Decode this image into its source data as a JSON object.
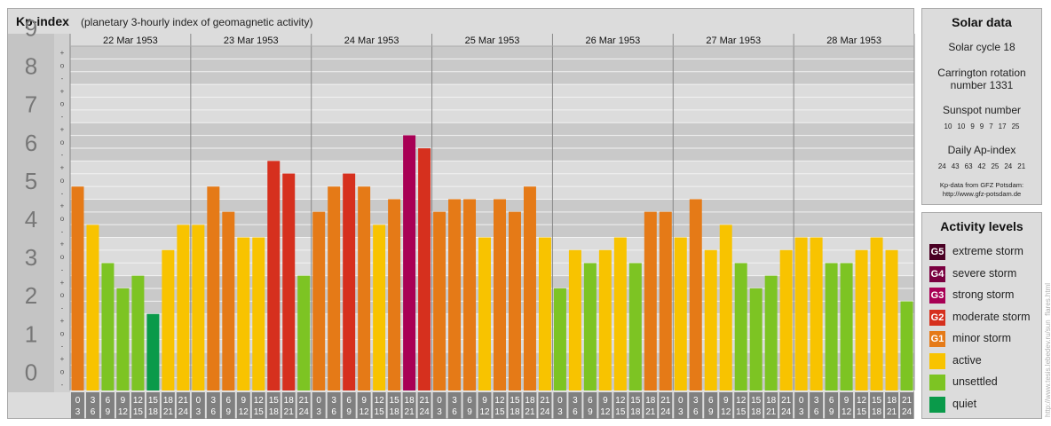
{
  "header": {
    "title": "Kp-index",
    "subtitle": "(planetary 3-hourly index of geomagnetic activity)"
  },
  "chart_data": {
    "type": "bar",
    "y_axis": {
      "range": [
        0,
        9
      ],
      "tick_labels": [
        "0",
        "1",
        "2",
        "3",
        "4",
        "5",
        "6",
        "7",
        "8",
        "9"
      ],
      "minor_marks": [
        "-",
        "o",
        "+"
      ]
    },
    "days": [
      "22 Mar 1953",
      "23 Mar 1953",
      "24 Mar 1953",
      "25 Mar 1953",
      "26 Mar 1953",
      "27 Mar 1953",
      "28 Mar 1953"
    ],
    "interval_labels": [
      [
        "0",
        "3"
      ],
      [
        "3",
        "6"
      ],
      [
        "6",
        "9"
      ],
      [
        "9",
        "12"
      ],
      [
        "12",
        "15"
      ],
      [
        "15",
        "18"
      ],
      [
        "18",
        "21"
      ],
      [
        "21",
        "24"
      ]
    ],
    "kp_values": [
      5.33,
      4.33,
      3.33,
      2.67,
      3,
      2,
      3.67,
      4.33,
      4.33,
      5.33,
      4.67,
      4,
      4,
      6,
      5.67,
      3,
      4.67,
      5.33,
      5.67,
      5.33,
      4.33,
      5,
      6.67,
      6.33,
      4.67,
      5,
      5,
      4,
      5,
      4.67,
      5.33,
      4,
      2.67,
      3.67,
      3.33,
      3.67,
      4,
      3.33,
      4.67,
      4.67,
      4,
      5,
      3.67,
      4.33,
      3.33,
      2.67,
      3,
      3.67,
      4,
      4,
      3.33,
      3.33,
      3.67,
      4,
      3.67,
      2.33
    ],
    "color_scale": [
      {
        "level": "quiet",
        "max": 2,
        "color": "#0a9a4a"
      },
      {
        "level": "unsettled",
        "max": 3.34,
        "color": "#7dc423"
      },
      {
        "level": "active",
        "max": 4.34,
        "color": "#f8c300"
      },
      {
        "level": "minor storm",
        "max": 5.34,
        "color": "#e57a17"
      },
      {
        "level": "moderate storm",
        "max": 6.34,
        "color": "#d6301e"
      },
      {
        "level": "strong storm",
        "max": 7.34,
        "color": "#a80055"
      },
      {
        "level": "severe storm",
        "max": 8.34,
        "color": "#7a0040"
      },
      {
        "level": "extreme storm",
        "max": 9,
        "color": "#4a0024"
      }
    ],
    "grid": true
  },
  "solar": {
    "title": "Solar data",
    "cycle": "Solar cycle 18",
    "carrington_line1": "Carrington rotation",
    "carrington_line2": "number 1331",
    "sunspot_label": "Sunspot number",
    "sunspot_values": [
      "10",
      "10",
      "9",
      "9",
      "7",
      "17",
      "25"
    ],
    "ap_label": "Daily Ap-index",
    "ap_values": [
      "24",
      "43",
      "63",
      "42",
      "25",
      "24",
      "21"
    ],
    "source_line1": "Kp-data from GFZ Potsdam:",
    "source_line2": "http://www.gfz-potsdam.de"
  },
  "activity": {
    "title": "Activity levels",
    "items": [
      {
        "code": "G5",
        "label": "extreme storm",
        "color": "#4a0024"
      },
      {
        "code": "G4",
        "label": "severe storm",
        "color": "#7a0040"
      },
      {
        "code": "G3",
        "label": "strong storm",
        "color": "#a80055"
      },
      {
        "code": "G2",
        "label": "moderate storm",
        "color": "#d6301e"
      },
      {
        "code": "G1",
        "label": "minor storm",
        "color": "#e57a17"
      },
      {
        "code": "",
        "label": "active",
        "color": "#f8c300"
      },
      {
        "code": "",
        "label": "unsettled",
        "color": "#7dc423"
      },
      {
        "code": "",
        "label": "quiet",
        "color": "#0a9a4a"
      }
    ]
  },
  "credit": "http://www.tesis.lebedev.ru/sun_flares.html"
}
